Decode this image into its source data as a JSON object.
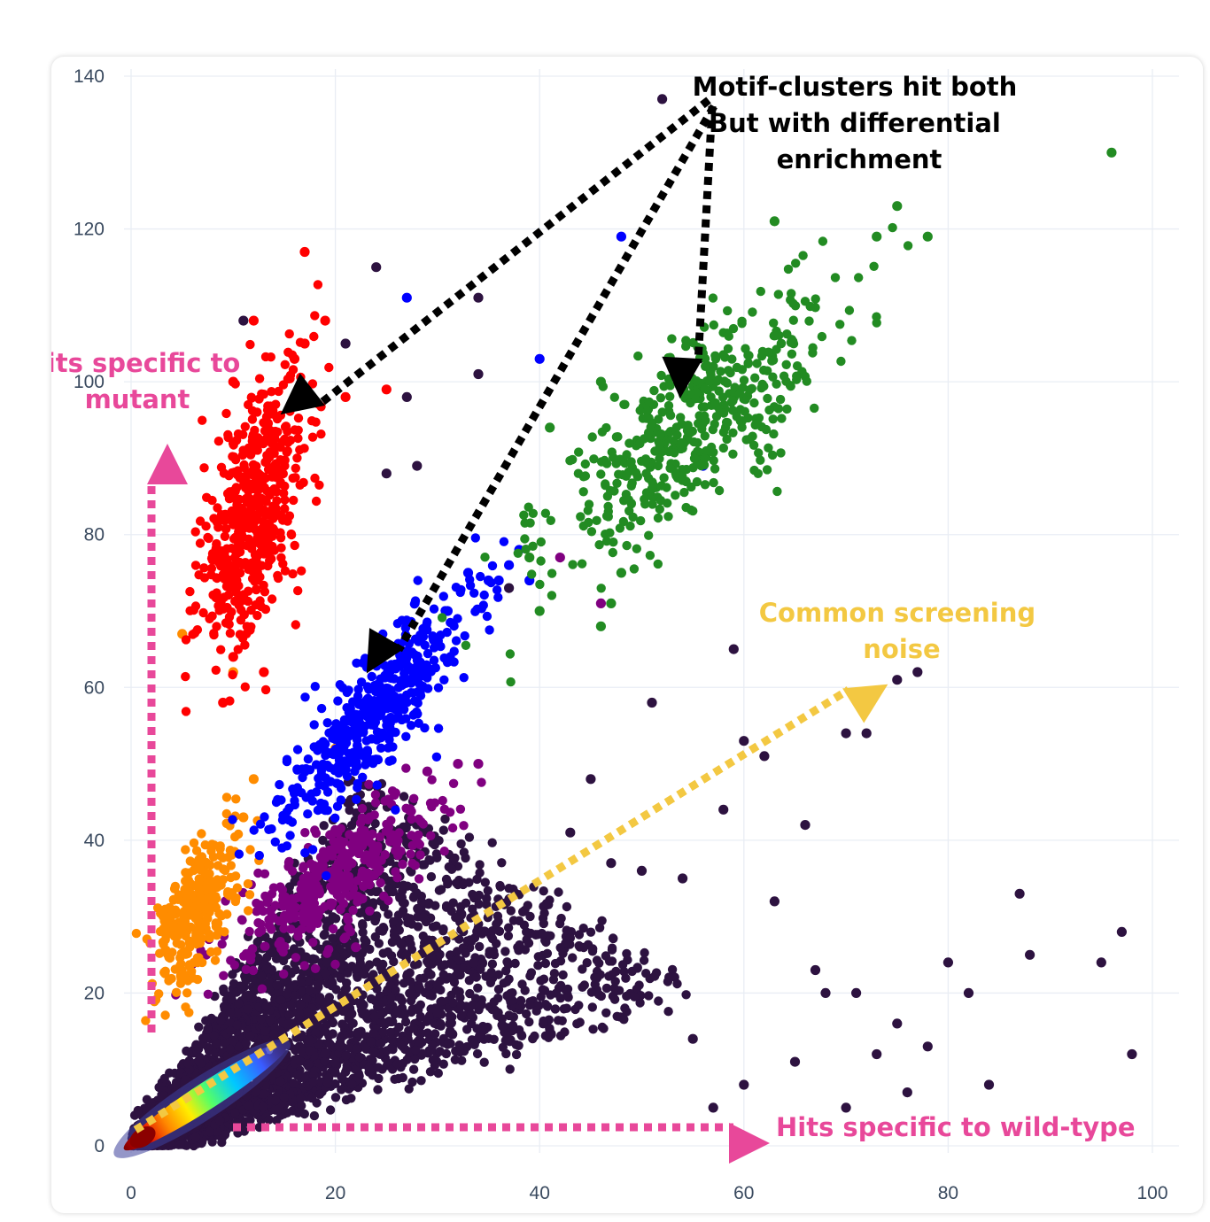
{
  "chart_data": {
    "type": "scatter",
    "title": "",
    "xlabel": "",
    "ylabel": "",
    "xlim": [
      0,
      100
    ],
    "ylim": [
      0,
      140
    ],
    "x_ticks": [
      "0",
      "20",
      "40",
      "60",
      "80",
      "100"
    ],
    "y_ticks": [
      "0",
      "20",
      "40",
      "60",
      "80",
      "100",
      "120",
      "140"
    ],
    "grid": true,
    "series": [
      {
        "color": "#ff0000",
        "center": [
          12,
          83
        ],
        "spread": [
          2.6,
          9
        ],
        "rho": 0.55,
        "count": 520,
        "outliers": [
          [
            17,
            117
          ],
          [
            17,
            105
          ],
          [
            19,
            108
          ],
          [
            12,
            108
          ],
          [
            21,
            98
          ],
          [
            25,
            99
          ],
          [
            16,
            103
          ],
          [
            10,
            100
          ],
          [
            13,
            62
          ],
          [
            9,
            58
          ],
          [
            10,
            64
          ]
        ]
      },
      {
        "color": "#0000ff",
        "center": [
          24,
          57
        ],
        "spread": [
          4.5,
          7.5
        ],
        "rho": 0.85,
        "count": 470,
        "outliers": [
          [
            27,
            111
          ],
          [
            48,
            119
          ],
          [
            40,
            103
          ],
          [
            56,
            89
          ],
          [
            37,
            76
          ],
          [
            38,
            78
          ],
          [
            33,
            75
          ],
          [
            36,
            74
          ],
          [
            35,
            74
          ],
          [
            39,
            74
          ],
          [
            31,
            70
          ]
        ]
      },
      {
        "color": "#228b22",
        "center": [
          55,
          94
        ],
        "spread": [
          7,
          9
        ],
        "rho": 0.8,
        "count": 480,
        "outliers": [
          [
            96,
            130
          ],
          [
            75,
            123
          ],
          [
            78,
            119
          ],
          [
            73,
            119
          ],
          [
            63,
            121
          ],
          [
            46,
            100
          ],
          [
            41,
            94
          ],
          [
            39,
            77
          ],
          [
            40,
            70
          ],
          [
            48,
            75
          ],
          [
            46,
            68
          ],
          [
            47,
            71
          ]
        ]
      },
      {
        "color": "#ff8c00",
        "center": [
          6.5,
          31
        ],
        "spread": [
          2,
          5
        ],
        "rho": 0.6,
        "count": 320,
        "outliers": [
          [
            5,
            67
          ],
          [
            10,
            62
          ],
          [
            20,
            52
          ],
          [
            11,
            43
          ],
          [
            12,
            48
          ]
        ]
      },
      {
        "color": "#800080",
        "center": [
          20,
          35
        ],
        "spread": [
          5,
          5.5
        ],
        "rho": 0.75,
        "count": 380,
        "outliers": [
          [
            42,
            77
          ],
          [
            46,
            71
          ],
          [
            32,
            50
          ],
          [
            34,
            50
          ],
          [
            29,
            49
          ],
          [
            22,
            26
          ]
        ]
      },
      {
        "color": "#2d1240",
        "center": [
          10,
          13
        ],
        "spread": [
          8,
          6
        ],
        "rho": 0.7,
        "count": 3600,
        "outliers": [
          [
            52,
            137
          ],
          [
            24,
            115
          ],
          [
            34,
            111
          ],
          [
            34,
            101
          ],
          [
            27,
            98
          ],
          [
            28,
            89
          ],
          [
            25,
            88
          ],
          [
            11,
            108
          ],
          [
            21,
            105
          ],
          [
            37,
            73
          ],
          [
            60,
            53
          ],
          [
            62,
            51
          ],
          [
            59,
            65
          ],
          [
            51,
            58
          ],
          [
            70,
            54
          ],
          [
            72,
            54
          ],
          [
            66,
            42
          ],
          [
            77,
            62
          ],
          [
            75,
            61
          ],
          [
            87,
            33
          ],
          [
            88,
            25
          ],
          [
            97,
            28
          ],
          [
            98,
            12
          ],
          [
            95,
            24
          ],
          [
            80,
            24
          ],
          [
            82,
            20
          ],
          [
            70,
            5
          ],
          [
            73,
            12
          ],
          [
            65,
            11
          ],
          [
            67,
            23
          ],
          [
            60,
            8
          ],
          [
            57,
            5
          ],
          [
            76,
            7
          ],
          [
            84,
            8
          ],
          [
            55,
            14
          ],
          [
            68,
            20
          ],
          [
            47,
            37
          ],
          [
            50,
            36
          ],
          [
            43,
            41
          ],
          [
            45,
            48
          ],
          [
            54,
            35
          ],
          [
            58,
            44
          ],
          [
            63,
            32
          ],
          [
            71,
            20
          ],
          [
            75,
            16
          ],
          [
            78,
            13
          ]
        ]
      }
    ],
    "density_core": {
      "line": [
        [
          0.4,
          0.5
        ],
        [
          16,
          14
        ]
      ],
      "width": 2.2
    },
    "annotations": [
      {
        "text_lines": [
          "Motif-clusters hit both",
          "But with differential",
          "enrichment"
        ],
        "color": "#000000",
        "anchor": [
          57,
          137
        ]
      },
      {
        "text_lines": [
          "Hits specific to",
          "mutant"
        ],
        "color": "#e8489a",
        "anchor": [
          2,
          102
        ]
      },
      {
        "text_lines": [
          "Common screening",
          "noise"
        ],
        "color": "#f3c842",
        "anchor": [
          76,
          70
        ]
      },
      {
        "text_lines": [
          "Hits specific to wild-type"
        ],
        "color": "#e8489a",
        "anchor": [
          63,
          3
        ]
      }
    ]
  }
}
